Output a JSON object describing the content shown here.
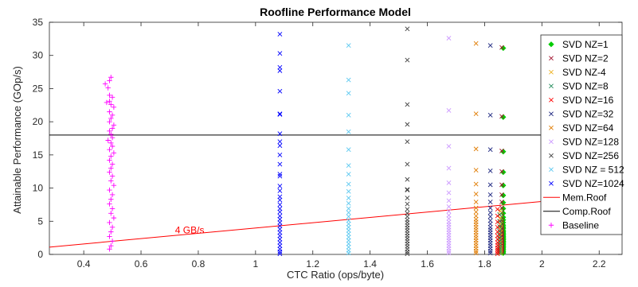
{
  "chart_data": {
    "type": "scatter",
    "title": "Roofline Performance Model",
    "xlabel": "CTC Ratio (ops/byte)",
    "ylabel": "Attainable Performance (GOp/s)",
    "xlim": [
      0.28,
      2.28
    ],
    "ylim": [
      0,
      35
    ],
    "xticks": [
      "0.4",
      "0.6",
      "0.8",
      "1",
      "1.2",
      "1.4",
      "1.6",
      "1.8",
      "2",
      "2.2"
    ],
    "yticks": [
      "0",
      "5",
      "10",
      "15",
      "20",
      "25",
      "30",
      "35"
    ],
    "grid": false,
    "legend_position": "right",
    "annotations": [
      {
        "text": "4 GB/s",
        "x": 0.77,
        "y": 3.2,
        "color": "#ff0000"
      }
    ],
    "roofs": [
      {
        "name": "Mem.Roof",
        "color": "#ff0000",
        "points": [
          [
            0.28,
            1.1
          ],
          [
            2.28,
            9.1
          ]
        ]
      },
      {
        "name": "Comp.Roof",
        "color": "#000000",
        "points": [
          [
            0.28,
            18.0
          ],
          [
            2.28,
            18.0
          ]
        ]
      }
    ],
    "series": [
      {
        "name": "SVD NZ=1",
        "marker": "diamond",
        "color": "#00cc00",
        "x": 1.865,
        "y": [
          31.1,
          20.7,
          15.5,
          12.4,
          10.4,
          8.9,
          7.8,
          6.9,
          6.2,
          5.6,
          5.2,
          4.8,
          4.4,
          4.1,
          3.9,
          3.6,
          3.4,
          3.2,
          3.0,
          2.9,
          2.7,
          2.6,
          2.4,
          2.3,
          2.2,
          2.0,
          1.9,
          1.8,
          1.6,
          1.5,
          1.3,
          1.2,
          1.0,
          0.8,
          0.6,
          0.4,
          0.2
        ]
      },
      {
        "name": "SVD NZ=2",
        "marker": "x",
        "color": "#a2142f",
        "x": 1.86,
        "y": [
          31.2,
          20.8,
          15.6,
          12.5,
          10.5,
          9.0,
          7.9,
          7.0,
          6.3,
          5.7,
          5.2,
          4.8,
          4.4,
          4.1,
          3.8,
          3.6,
          3.3,
          3.1,
          2.9,
          2.7,
          2.5,
          2.3,
          2.1,
          1.9,
          1.7,
          1.5,
          1.3,
          1.1,
          0.9,
          0.7,
          0.5,
          0.3
        ]
      },
      {
        "name": "SVD NZ-4",
        "marker": "x",
        "color": "#edb120",
        "x": 1.855,
        "y": [
          6.5,
          5.5,
          4.6,
          3.9,
          3.3,
          2.8,
          2.3,
          1.9,
          1.5,
          1.1,
          0.8,
          0.5,
          0.2
        ]
      },
      {
        "name": "SVD NZ=8",
        "marker": "x",
        "color": "#228b5b",
        "x": 1.852,
        "y": [
          6.0,
          5.0,
          4.2,
          3.5,
          2.9,
          2.4,
          1.9,
          1.5,
          1.1,
          0.8,
          0.5,
          0.2
        ]
      },
      {
        "name": "SVD NZ=16",
        "marker": "x",
        "color": "#ff0000",
        "x": 1.845,
        "y": [
          6.8,
          5.8,
          4.9,
          4.1,
          3.4,
          2.8,
          2.3,
          1.8,
          1.4,
          1.0,
          0.7,
          0.4,
          0.1
        ]
      },
      {
        "name": "SVD NZ=32",
        "marker": "x",
        "color": "#1a237e",
        "x": 1.82,
        "y": [
          31.5,
          21.0,
          15.8,
          12.6,
          10.5,
          9.0,
          7.9,
          7.0,
          6.3,
          5.7,
          5.1,
          4.6,
          4.1,
          3.7,
          3.3,
          2.9,
          2.5,
          2.1,
          1.7,
          1.3,
          0.9,
          0.5,
          0.2
        ]
      },
      {
        "name": "SVD NZ=64",
        "marker": "x",
        "color": "#e07b00",
        "x": 1.77,
        "y": [
          31.8,
          21.2,
          15.9,
          12.7,
          10.6,
          9.1,
          7.9,
          7.0,
          6.4,
          5.8,
          5.3,
          4.9,
          4.5,
          4.1,
          3.7,
          3.3,
          2.9,
          2.5,
          2.1,
          1.7,
          1.3,
          0.9,
          0.5,
          0.2
        ]
      },
      {
        "name": "SVD NZ=128",
        "marker": "x",
        "color": "#cc99ff",
        "x": 1.675,
        "y": [
          32.6,
          21.7,
          16.3,
          13.0,
          10.8,
          9.3,
          8.1,
          7.2,
          6.5,
          5.9,
          5.4,
          4.9,
          4.5,
          4.1,
          3.7,
          3.3,
          2.9,
          2.5,
          2.1,
          1.7,
          1.3,
          0.9,
          0.5,
          0.2
        ]
      },
      {
        "name": "SVD NZ=256",
        "marker": "x",
        "color": "#404040",
        "x": 1.53,
        "y": [
          34.0,
          29.3,
          22.6,
          19.6,
          17.0,
          13.6,
          11.3,
          9.8,
          9.7,
          8.5,
          7.6,
          6.8,
          6.2,
          5.7,
          5.2,
          4.8,
          4.4,
          4.0,
          3.6,
          3.2,
          2.8,
          2.4,
          2.0,
          1.6,
          1.2,
          0.8,
          0.4,
          0.1
        ]
      },
      {
        "name": "SVD NZ = 512",
        "marker": "x",
        "color": "#5bc8f0",
        "x": 1.325,
        "y": [
          31.5,
          26.3,
          24.3,
          21.0,
          18.5,
          15.8,
          13.4,
          12.1,
          10.6,
          9.5,
          8.5,
          7.7,
          6.9,
          6.3,
          5.7,
          5.1,
          4.6,
          4.1,
          3.6,
          3.1,
          2.6,
          2.1,
          1.6,
          1.1,
          0.6,
          0.2
        ]
      },
      {
        "name": "SVD NZ=1024",
        "marker": "x",
        "color": "#0000ff",
        "x": 1.085,
        "y": [
          33.2,
          30.3,
          28.2,
          27.7,
          24.6,
          21.2,
          21.1,
          18.2,
          17.0,
          16.4,
          15.0,
          13.6,
          12.1,
          11.8,
          10.3,
          9.6,
          8.7,
          8.2,
          7.5,
          6.9,
          6.4,
          5.8,
          5.3,
          4.8,
          4.3,
          3.8,
          3.3,
          2.8,
          2.3,
          1.8,
          1.3,
          0.8,
          0.4,
          0.1
        ]
      },
      {
        "name": "Baseline",
        "marker": "plus",
        "color": "#ff00ff",
        "x": [
          0.475,
          0.49,
          0.495,
          0.485,
          0.49,
          0.5,
          0.49,
          0.495,
          0.505,
          0.48,
          0.49,
          0.5,
          0.495,
          0.49,
          0.505,
          0.5,
          0.49,
          0.495,
          0.5,
          0.485,
          0.495,
          0.5,
          0.49,
          0.505,
          0.495,
          0.49,
          0.5,
          0.495,
          0.49,
          0.5,
          0.495,
          0.505,
          0.49,
          0.5,
          0.495,
          0.49,
          0.5,
          0.495,
          0.505,
          0.49,
          0.5,
          0.495,
          0.49,
          0.5,
          0.495,
          0.49
        ],
        "y": [
          25.7,
          26.2,
          26.7,
          25.1,
          24.0,
          23.7,
          23.1,
          22.6,
          22.2,
          22.9,
          21.5,
          21.0,
          20.5,
          20.0,
          19.5,
          19.0,
          18.6,
          18.1,
          17.6,
          17.2,
          16.8,
          16.3,
          15.8,
          15.3,
          14.8,
          14.2,
          13.6,
          13.0,
          12.4,
          11.8,
          11.1,
          10.4,
          9.7,
          9.0,
          8.3,
          7.6,
          6.9,
          6.2,
          5.5,
          4.8,
          4.1,
          3.4,
          2.7,
          2.0,
          1.3,
          0.8
        ]
      }
    ],
    "legend": [
      "SVD NZ=1",
      "SVD NZ=2",
      "SVD NZ-4",
      "SVD NZ=8",
      "SVD NZ=16",
      "SVD NZ=32",
      "SVD NZ=64",
      "SVD NZ=128",
      "SVD NZ=256",
      "SVD NZ = 512",
      "SVD NZ=1024",
      "Mem.Roof",
      "Comp.Roof",
      "Baseline"
    ]
  }
}
